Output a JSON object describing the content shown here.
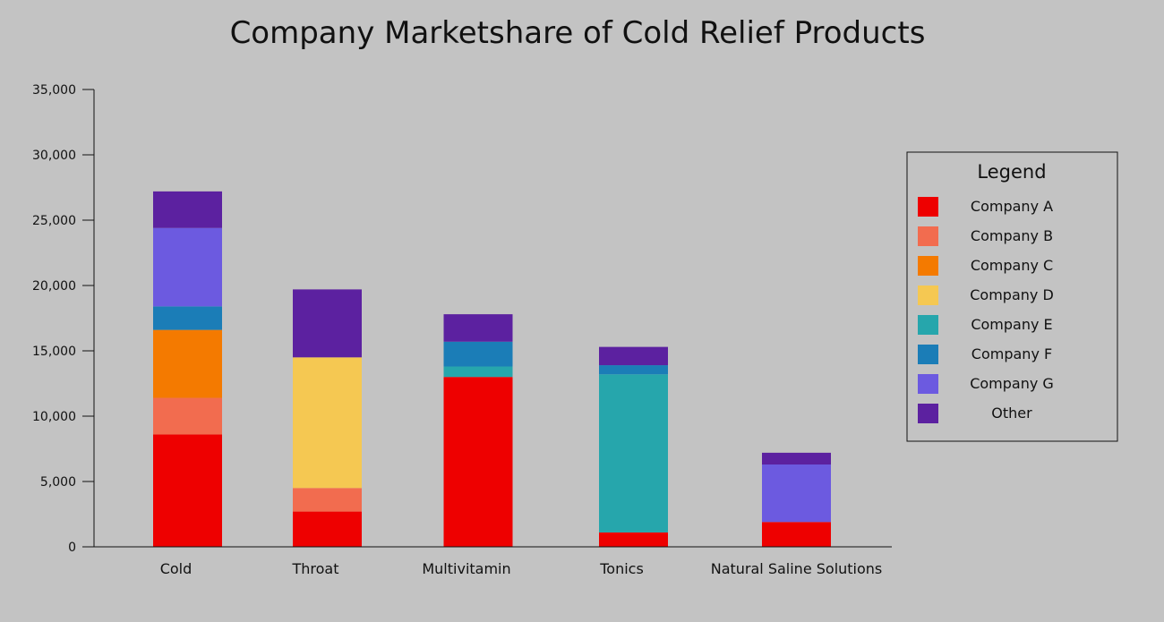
{
  "chart_data": {
    "type": "bar",
    "stacked": true,
    "title": "Company Marketshare of Cold Relief Products",
    "xlabel": "",
    "ylabel": "",
    "ylim": [
      0,
      35000
    ],
    "y_ticks": [
      "0",
      "5,000",
      "10,000",
      "15,000",
      "20,000",
      "25,000",
      "30,000",
      "35,000"
    ],
    "grid": false,
    "legend_title": "Legend",
    "legend_position": "right",
    "categories": [
      "Cold",
      "Throat",
      "Multivitamin",
      "Tonics",
      "Natural Saline Solutions"
    ],
    "series": [
      {
        "name": "Company A",
        "color": "#ee0000",
        "values": [
          8600,
          2700,
          13000,
          1100,
          1900
        ]
      },
      {
        "name": "Company B",
        "color": "#f26c4f",
        "values": [
          2800,
          1800,
          0,
          0,
          0
        ]
      },
      {
        "name": "Company C",
        "color": "#f47a00",
        "values": [
          5200,
          0,
          0,
          0,
          0
        ]
      },
      {
        "name": "Company D",
        "color": "#f5c852",
        "values": [
          0,
          10000,
          0,
          0,
          0
        ]
      },
      {
        "name": "Company E",
        "color": "#26a6ac",
        "values": [
          0,
          0,
          800,
          12100,
          0
        ]
      },
      {
        "name": "Company F",
        "color": "#1b7db7",
        "values": [
          1800,
          0,
          1900,
          700,
          0
        ]
      },
      {
        "name": "Company G",
        "color": "#6c5ae0",
        "values": [
          6000,
          0,
          0,
          0,
          4400
        ]
      },
      {
        "name": "Other",
        "color": "#5c21a0",
        "values": [
          2800,
          5200,
          2100,
          1400,
          900
        ]
      }
    ]
  }
}
